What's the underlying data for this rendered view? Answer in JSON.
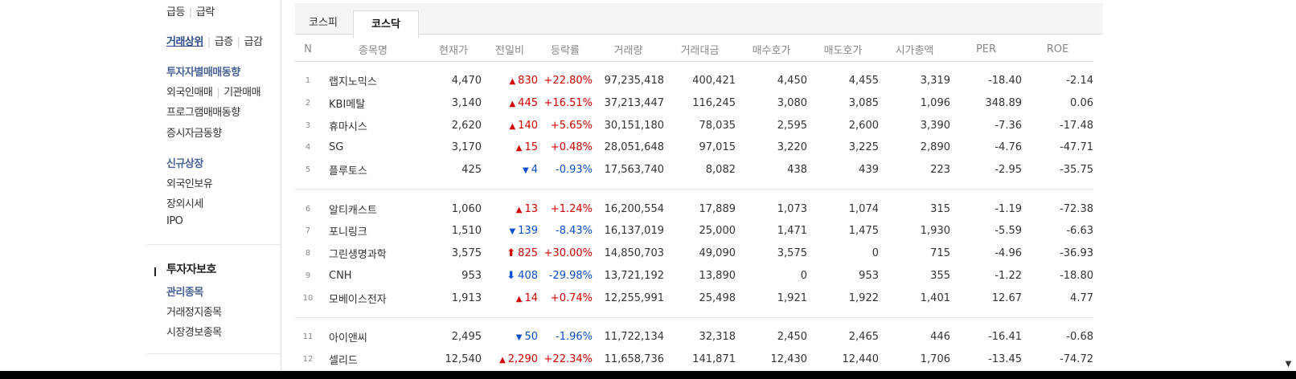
{
  "sidebar": {
    "row1": {
      "a": "급등",
      "b": "급락"
    },
    "row2": {
      "a": "거래상위",
      "b": "급증",
      "c": "급감"
    },
    "investor_trend": "투자자별매매동향",
    "row4": {
      "a": "외국인매매",
      "b": "기관매매"
    },
    "program_trend": "프로그램매매동향",
    "deposit_trend": "증시자금동향",
    "new_listing": "신규상장",
    "foreign_holding": "외국인보유",
    "otc_price": "장외시세",
    "ipo": "IPO",
    "investor_protection": "투자자보호",
    "managed_stocks": "관리종목",
    "suspended_stocks": "거래정지종목",
    "warning_stocks": "시장경보종목"
  },
  "tabs": {
    "kospi": "코스피",
    "kosdaq": "코스닥"
  },
  "columns": [
    "N",
    "종목명",
    "현재가",
    "전일비",
    "등락률",
    "거래량",
    "거래대금",
    "매수호가",
    "매도호가",
    "시가총액",
    "PER",
    "ROE"
  ],
  "groups": [
    [
      {
        "n": "1",
        "name": "랩지노믹스",
        "price": "4,470",
        "dir": "up",
        "icon": "▲",
        "chg": "830",
        "rate": "+22.80%",
        "vol": "97,235,418",
        "amt": "400,421",
        "bid": "4,450",
        "ask": "4,455",
        "cap": "3,319",
        "per": "-18.40",
        "roe": "-2.14"
      },
      {
        "n": "2",
        "name": "KBI메탈",
        "price": "3,140",
        "dir": "up",
        "icon": "▲",
        "chg": "445",
        "rate": "+16.51%",
        "vol": "37,213,447",
        "amt": "116,245",
        "bid": "3,080",
        "ask": "3,085",
        "cap": "1,096",
        "per": "348.89",
        "roe": "0.06"
      },
      {
        "n": "3",
        "name": "휴마시스",
        "price": "2,620",
        "dir": "up",
        "icon": "▲",
        "chg": "140",
        "rate": "+5.65%",
        "vol": "30,151,180",
        "amt": "78,035",
        "bid": "2,595",
        "ask": "2,600",
        "cap": "3,390",
        "per": "-7.36",
        "roe": "-17.48"
      },
      {
        "n": "4",
        "name": "SG",
        "price": "3,170",
        "dir": "up",
        "icon": "▲",
        "chg": "15",
        "rate": "+0.48%",
        "vol": "28,051,648",
        "amt": "97,015",
        "bid": "3,220",
        "ask": "3,225",
        "cap": "2,890",
        "per": "-4.76",
        "roe": "-47.71"
      },
      {
        "n": "5",
        "name": "플루토스",
        "price": "425",
        "dir": "down",
        "icon": "▼",
        "chg": "4",
        "rate": "-0.93%",
        "vol": "17,563,740",
        "amt": "8,082",
        "bid": "438",
        "ask": "439",
        "cap": "223",
        "per": "-2.95",
        "roe": "-35.75"
      }
    ],
    [
      {
        "n": "6",
        "name": "알티캐스트",
        "price": "1,060",
        "dir": "up",
        "icon": "▲",
        "chg": "13",
        "rate": "+1.24%",
        "vol": "16,200,554",
        "amt": "17,889",
        "bid": "1,073",
        "ask": "1,074",
        "cap": "315",
        "per": "-1.19",
        "roe": "-72.38"
      },
      {
        "n": "7",
        "name": "포니링크",
        "price": "1,510",
        "dir": "down",
        "icon": "▼",
        "chg": "139",
        "rate": "-8.43%",
        "vol": "16,137,019",
        "amt": "25,000",
        "bid": "1,471",
        "ask": "1,475",
        "cap": "1,930",
        "per": "-5.59",
        "roe": "-6.63"
      },
      {
        "n": "8",
        "name": "그린생명과학",
        "price": "3,575",
        "dir": "up",
        "icon": "⬆",
        "chg": "825",
        "rate": "+30.00%",
        "vol": "14,850,703",
        "amt": "49,090",
        "bid": "3,575",
        "ask": "0",
        "cap": "715",
        "per": "-4.96",
        "roe": "-36.93"
      },
      {
        "n": "9",
        "name": "CNH",
        "price": "953",
        "dir": "down",
        "icon": "⬇",
        "chg": "408",
        "rate": "-29.98%",
        "vol": "13,721,192",
        "amt": "13,890",
        "bid": "0",
        "ask": "953",
        "cap": "355",
        "per": "-1.22",
        "roe": "-18.80"
      },
      {
        "n": "10",
        "name": "모베이스전자",
        "price": "1,913",
        "dir": "up",
        "icon": "▲",
        "chg": "14",
        "rate": "+0.74%",
        "vol": "12,255,991",
        "amt": "25,498",
        "bid": "1,921",
        "ask": "1,922",
        "cap": "1,401",
        "per": "12.67",
        "roe": "4.77"
      }
    ],
    [
      {
        "n": "11",
        "name": "아이앤씨",
        "price": "2,495",
        "dir": "down",
        "icon": "▼",
        "chg": "50",
        "rate": "-1.96%",
        "vol": "11,722,134",
        "amt": "32,318",
        "bid": "2,450",
        "ask": "2,465",
        "cap": "446",
        "per": "-16.41",
        "roe": "-0.68"
      },
      {
        "n": "12",
        "name": "셀리드",
        "price": "12,540",
        "dir": "up",
        "icon": "▲",
        "chg": "2,290",
        "rate": "+22.34%",
        "vol": "11,658,736",
        "amt": "141,871",
        "bid": "12,430",
        "ask": "12,440",
        "cap": "1,706",
        "per": "-13.45",
        "roe": "-74.72"
      }
    ]
  ],
  "colors": {
    "up": "#d20000",
    "down": "#0b4ecf",
    "accent": "#2d4a89"
  }
}
